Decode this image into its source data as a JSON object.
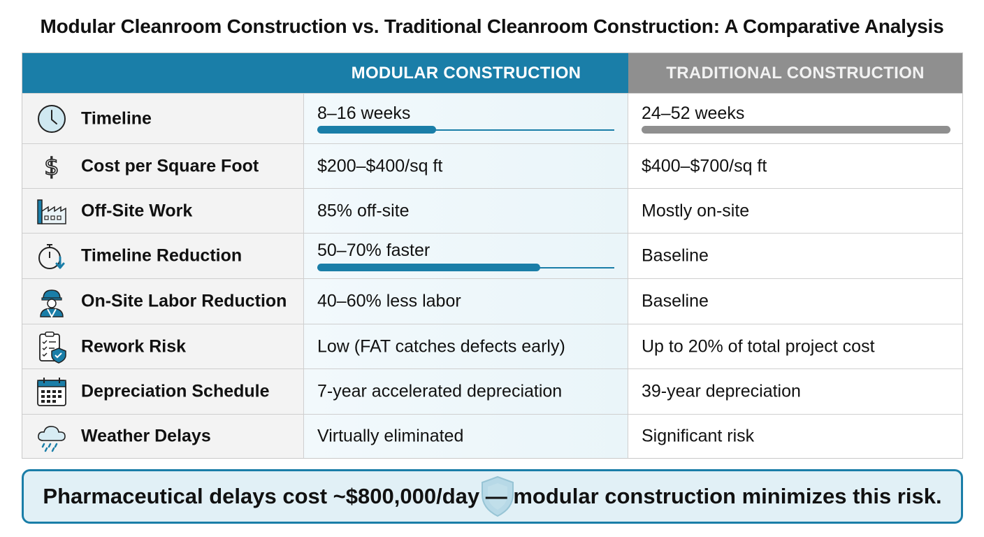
{
  "title": "Modular Cleanroom Construction vs. Traditional Cleanroom Construction: A Comparative Analysis",
  "header": {
    "col1": "",
    "col2": "MODULAR CONSTRUCTION",
    "col3": "TRADITIONAL CONSTRUCTION"
  },
  "colors": {
    "accent": "#1a7ea8",
    "gray_header": "#8f8f8f",
    "callout_bg": "#e1f0f6"
  },
  "rows": [
    {
      "icon": "clock-icon",
      "label": "Timeline",
      "modular": "8–16 weeks",
      "traditional": "24–52 weeks",
      "modular_bar_fill": 0.4,
      "traditional_bar_fill": 1.0
    },
    {
      "icon": "dollar-icon",
      "label": "Cost per Square Foot",
      "modular": "$200–$400/sq ft",
      "traditional": "$400–$700/sq ft"
    },
    {
      "icon": "factory-icon",
      "label": "Off-Site Work",
      "modular": "85% off-site",
      "traditional": "Mostly on-site"
    },
    {
      "icon": "stopwatch-down-icon",
      "label": "Timeline Reduction",
      "modular": "50–70% faster",
      "traditional": "Baseline",
      "modular_bar_fill": 0.75
    },
    {
      "icon": "construction-worker-icon",
      "label": "On-Site Labor Reduction",
      "modular": "40–60% less labor",
      "traditional": "Baseline"
    },
    {
      "icon": "clipboard-shield-icon",
      "label": "Rework Risk",
      "modular": "Low (FAT catches defects early)",
      "traditional": "Up to 20% of total project cost"
    },
    {
      "icon": "calendar-icon",
      "label": "Depreciation Schedule",
      "modular": "7-year accelerated depreciation",
      "traditional": "39-year depreciation"
    },
    {
      "icon": "rain-cloud-icon",
      "label": "Weather Delays",
      "modular": "Virtually eliminated",
      "traditional": "Significant risk"
    }
  ],
  "callout": {
    "text": "Pharmaceutical delays cost ~$800,000/day — modular construction minimizes this risk.",
    "icon": "shield-icon"
  }
}
